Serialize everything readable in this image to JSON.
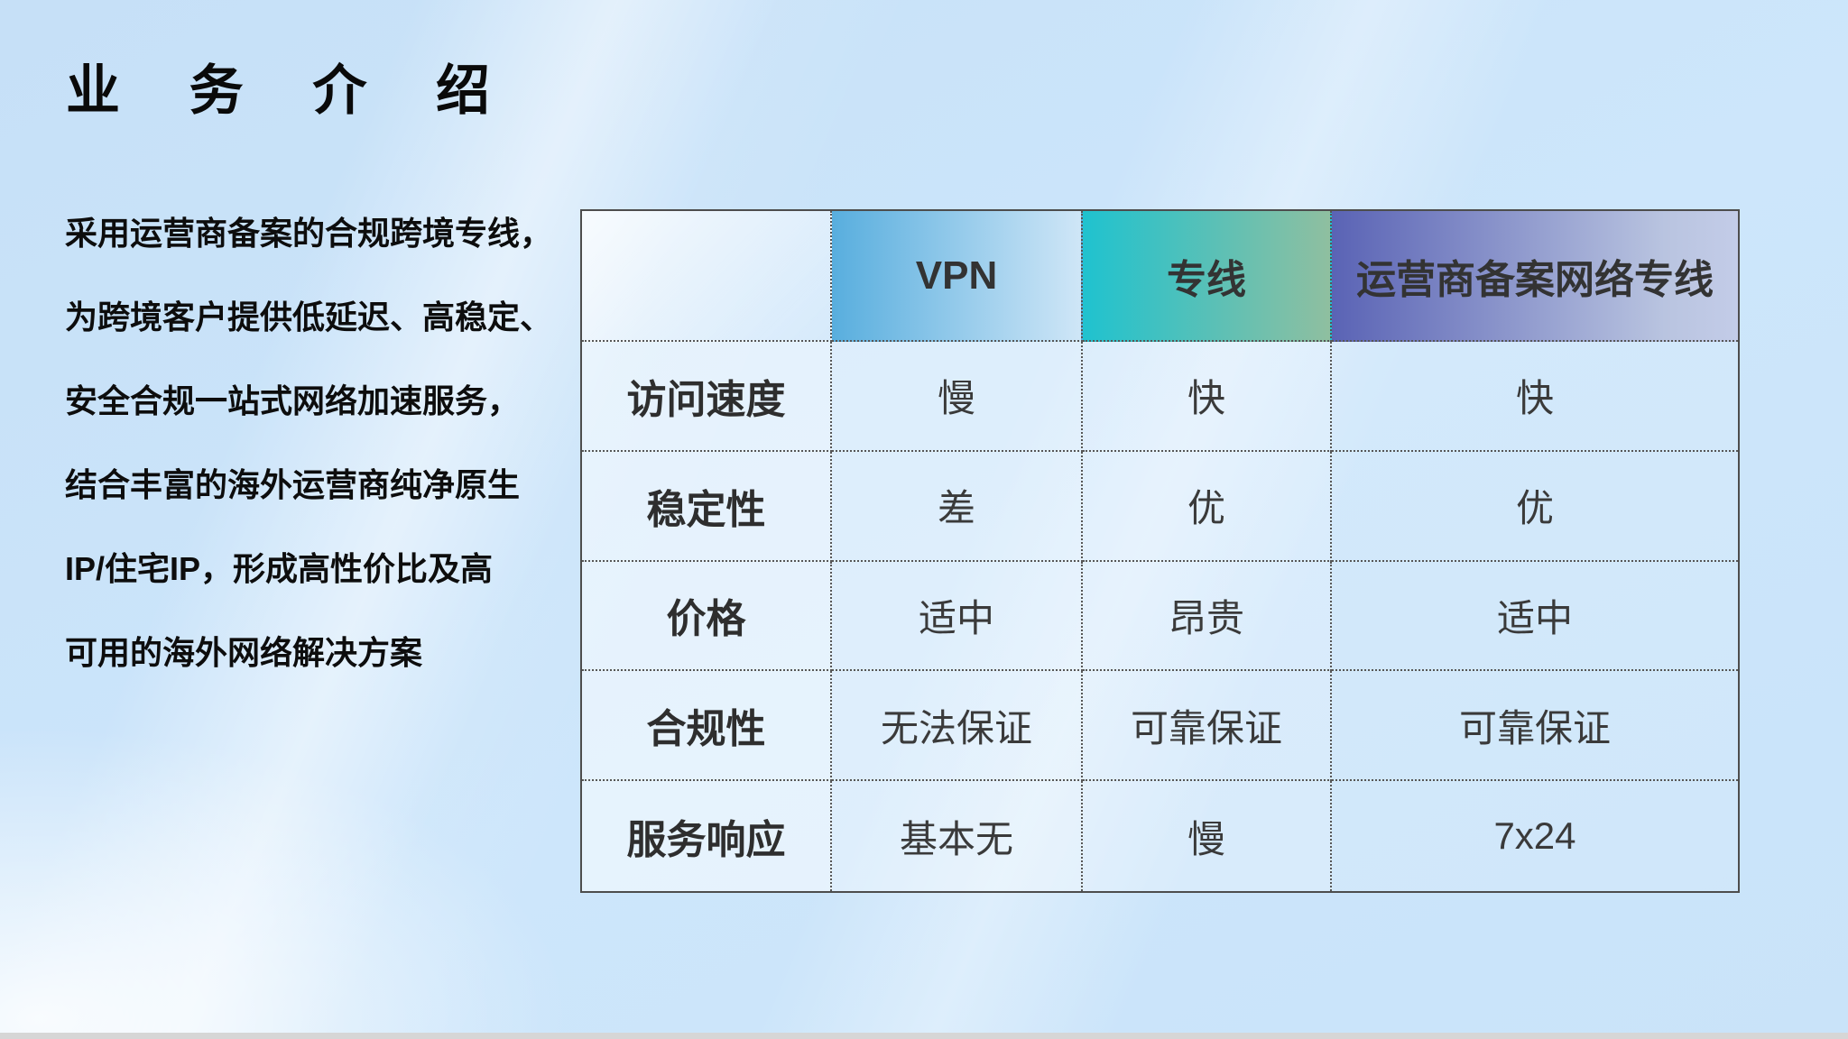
{
  "slide": {
    "title": "业 务 介 绍",
    "description_lines": [
      "采用运营商备案的合规跨境专线，",
      "为跨境客户提供低延迟、高稳定、",
      "安全合规一站式网络加速服务，",
      "结合丰富的海外运营商纯净原生",
      "IP/住宅IP，形成高性价比及高",
      "可用的海外网络解决方案"
    ]
  },
  "table": {
    "corner_label": "",
    "columns": [
      {
        "label": "VPN",
        "gradient_start": "#58AEDE",
        "gradient_end": "#CFE6F7"
      },
      {
        "label": "专线",
        "gradient_start": "#1FC2CF",
        "gradient_end": "#8FBFA0"
      },
      {
        "label": "运营商备案网络专线",
        "gradient_start": "#5A63B5",
        "gradient_end": "#C3CCE8"
      }
    ],
    "rows": [
      {
        "label": "访问速度",
        "values": [
          "慢",
          "快",
          "快"
        ]
      },
      {
        "label": "稳定性",
        "values": [
          "差",
          "优",
          "优"
        ]
      },
      {
        "label": "价格",
        "values": [
          "适中",
          "昂贵",
          "适中"
        ]
      },
      {
        "label": "合规性",
        "values": [
          "无法保证",
          "可靠保证",
          "可靠保证"
        ]
      },
      {
        "label": "服务响应",
        "values": [
          "基本无",
          "慢",
          "7x24"
        ]
      }
    ]
  },
  "colors": {
    "background": "#CDE6FB",
    "title_text": "#0A0A0A",
    "table_text": "#3A3A3A",
    "table_border": "#4D4D4D",
    "bottom_strip": "#D6D6D6"
  }
}
